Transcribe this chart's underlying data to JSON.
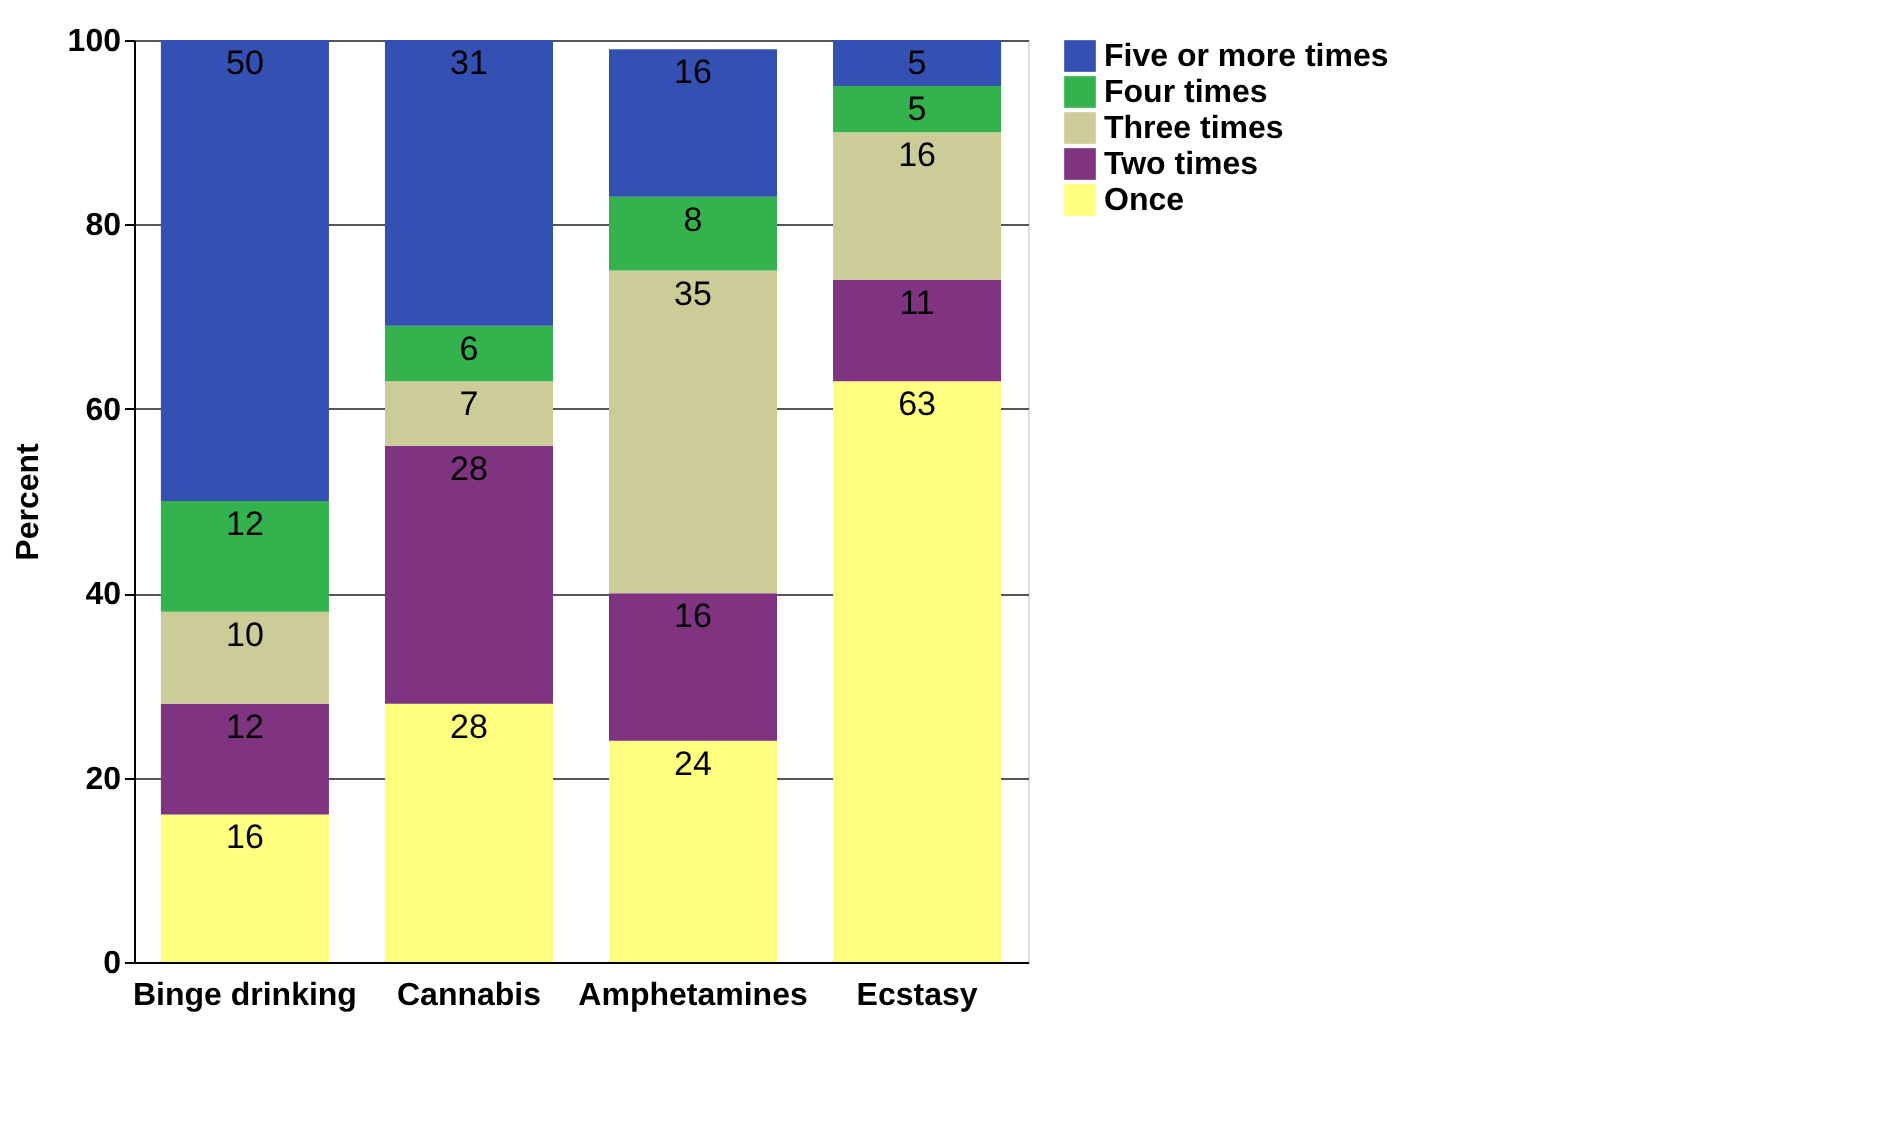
{
  "chart_data": {
    "type": "bar",
    "stacked": true,
    "ylabel": "Percent",
    "categories": [
      "Binge drinking",
      "Cannabis",
      "Amphetamines",
      "Ecstasy"
    ],
    "series": [
      {
        "name": "Once",
        "color": "#ffff80",
        "values": [
          16,
          28,
          24,
          63
        ]
      },
      {
        "name": "Two times",
        "color": "#7f3380",
        "values": [
          12,
          28,
          16,
          11
        ]
      },
      {
        "name": "Three times",
        "color": "#cccc99",
        "values": [
          10,
          7,
          35,
          16
        ]
      },
      {
        "name": "Four times",
        "color": "#33b24d",
        "values": [
          12,
          6,
          8,
          5
        ]
      },
      {
        "name": "Five or more times",
        "color": "#3350b2",
        "values": [
          50,
          31,
          16,
          5
        ]
      }
    ],
    "ylim": [
      0,
      100
    ],
    "yticks": [
      0,
      20,
      40,
      60,
      80,
      100
    ],
    "grid": "y",
    "legend": "top right",
    "data_labels": true
  }
}
